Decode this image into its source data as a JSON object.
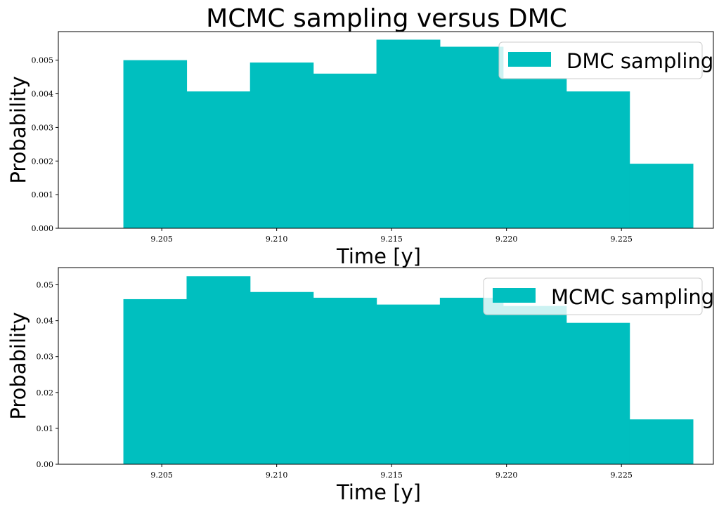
{
  "chart_data": [
    {
      "type": "bar",
      "title": "MCMC sampling versus DMC",
      "xlabel": "Time [y]",
      "ylabel": "Probability",
      "xlim": [
        9.2005,
        9.229
      ],
      "ylim": [
        0,
        0.00585
      ],
      "xticks": [
        "9.205",
        "9.210",
        "9.215",
        "9.220",
        "9.225"
      ],
      "yticks": [
        "0.000",
        "0.001",
        "0.002",
        "0.003",
        "0.004",
        "0.005"
      ],
      "bin_edges": [
        9.20333,
        9.20608,
        9.20884,
        9.21159,
        9.21434,
        9.2171,
        9.21985,
        9.2226,
        9.22535,
        9.22811
      ],
      "series": [
        {
          "name": "DMC sampling",
          "color": "#00bfbf",
          "values": [
            0.005,
            0.00407,
            0.00493,
            0.0046,
            0.00561,
            0.0054,
            0.00447,
            0.00407,
            0.00192
          ]
        }
      ],
      "legend": "top-right",
      "grid": false
    },
    {
      "type": "bar",
      "title": "",
      "xlabel": "Time [y]",
      "ylabel": "Probability",
      "xlim": [
        9.2005,
        9.229
      ],
      "ylim": [
        0,
        0.0548
      ],
      "xticks": [
        "9.205",
        "9.210",
        "9.215",
        "9.220",
        "9.225"
      ],
      "yticks": [
        "0.00",
        "0.01",
        "0.02",
        "0.03",
        "0.04",
        "0.05"
      ],
      "bin_edges": [
        9.20333,
        9.20608,
        9.20884,
        9.21159,
        9.21434,
        9.2171,
        9.21985,
        9.2226,
        9.22535,
        9.22811
      ],
      "series": [
        {
          "name": "MCMC sampling",
          "color": "#00bfbf",
          "values": [
            0.046,
            0.0524,
            0.048,
            0.0464,
            0.0445,
            0.0464,
            0.0441,
            0.0394,
            0.0125
          ]
        }
      ],
      "legend": "top-right",
      "grid": false
    }
  ]
}
